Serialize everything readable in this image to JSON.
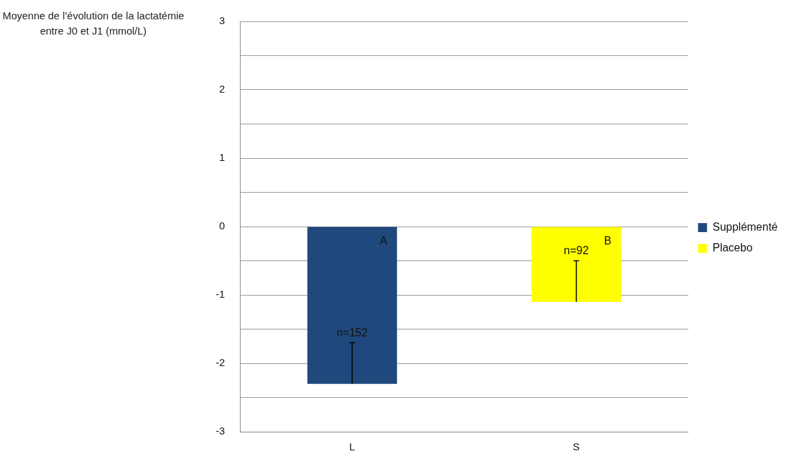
{
  "chart_data": {
    "type": "bar",
    "ylabel": "Moyenne de l’évolution de la lactatémie entre J0 et J1 (mmol/L)",
    "categories": [
      "L",
      "S"
    ],
    "series": [
      {
        "name": "Supplémenté",
        "color": "#1f497d",
        "values": [
          -2.3,
          null
        ],
        "errors": [
          [
            -2.3,
            -1.7
          ],
          null
        ]
      },
      {
        "name": "Placebo",
        "color": "#ffff00",
        "values": [
          null,
          -1.1
        ],
        "errors": [
          null,
          [
            -1.1,
            -0.5
          ]
        ]
      }
    ],
    "ylim": [
      -3,
      3
    ],
    "yticks": [
      -3,
      {
        "value": -2.5,
        "label": null
      },
      -2,
      {
        "value": -1.5,
        "label": null
      },
      -1,
      {
        "value": -0.5,
        "label": null
      },
      0,
      {
        "value": 0.5,
        "label": null
      },
      1,
      {
        "value": 1.5,
        "label": null
      },
      2,
      {
        "value": 2.5,
        "label": null
      },
      3
    ],
    "grid": "y",
    "legend": "right",
    "annotations": [
      {
        "text": "A",
        "x": "L",
        "y": 0
      },
      {
        "text": "n=152",
        "x": "L",
        "y": -1.7
      },
      {
        "text": "n=92",
        "x": "S",
        "y": -0.5
      },
      {
        "text": "B",
        "x": "S",
        "y": 0
      }
    ]
  }
}
